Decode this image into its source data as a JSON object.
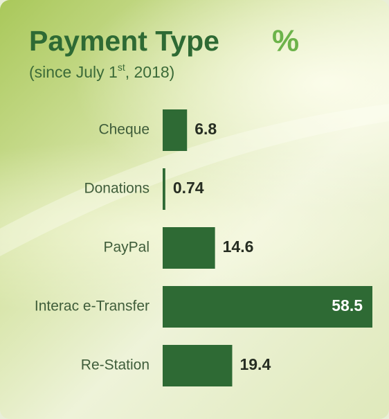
{
  "chart_data": {
    "type": "bar",
    "orientation": "horizontal",
    "title": "Payment Type",
    "unit": "%",
    "subtitle": [
      "(since July 1",
      "st",
      ", 2018)"
    ],
    "categories": [
      "Cheque",
      "Donations",
      "PayPal",
      "Interac e-Transfer",
      "Re-Station"
    ],
    "values": [
      6.8,
      0.74,
      14.6,
      58.5,
      19.4
    ],
    "color": "#2e6a34"
  }
}
